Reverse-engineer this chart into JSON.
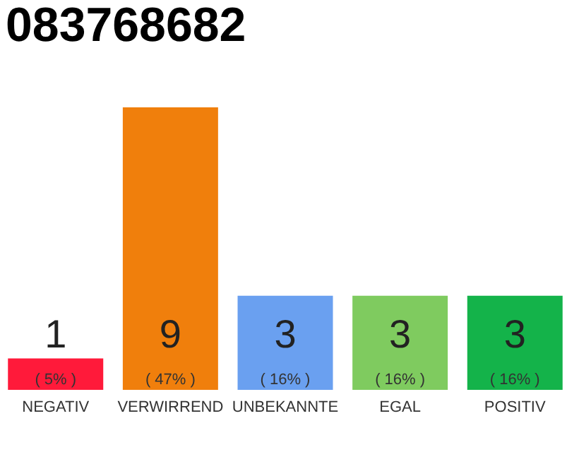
{
  "chart_data": {
    "type": "bar",
    "title": "083768682",
    "categories": [
      "NEGATIV",
      "VERWIRREND",
      "UNBEKANNTE",
      "EGAL",
      "POSITIV"
    ],
    "values": [
      1,
      9,
      3,
      3,
      3
    ],
    "colors": [
      "#ff1a3a",
      "#f07f0c",
      "#6aa0f0",
      "#7fcb5f",
      "#14b34a"
    ],
    "data_labels": true,
    "annotations": [
      "( 5% )",
      "( 47% )",
      "( 16% )",
      "( 16% )",
      "( 16% )"
    ],
    "tick_labels": "x",
    "grid": false,
    "legend": false
  }
}
